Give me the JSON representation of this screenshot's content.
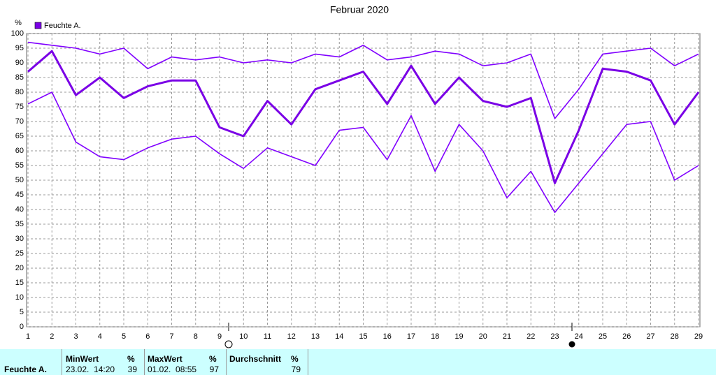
{
  "chart_data": {
    "type": "line",
    "title": "Februar 2020",
    "y_label": "%",
    "x": [
      1,
      2,
      3,
      4,
      5,
      6,
      7,
      8,
      9,
      10,
      11,
      12,
      13,
      14,
      15,
      16,
      17,
      18,
      19,
      20,
      21,
      22,
      23,
      24,
      25,
      26,
      27,
      28,
      29
    ],
    "xlim": [
      1,
      29
    ],
    "xticks": [
      1,
      2,
      3,
      4,
      5,
      6,
      7,
      8,
      9,
      10,
      11,
      12,
      13,
      14,
      15,
      16,
      17,
      18,
      19,
      20,
      21,
      22,
      23,
      24,
      25,
      26,
      27,
      28,
      29
    ],
    "ylim": [
      0,
      100
    ],
    "yticks": [
      0,
      5,
      10,
      15,
      20,
      25,
      30,
      35,
      40,
      45,
      50,
      55,
      60,
      65,
      70,
      75,
      80,
      85,
      90,
      95,
      100
    ],
    "grid": true,
    "legend": "top-left",
    "series": [
      {
        "name": "Feuchte A.",
        "color": "#7a00e6",
        "values": [
          87,
          94,
          79,
          85,
          78,
          82,
          84,
          84,
          68,
          65,
          77,
          69,
          81,
          84,
          87,
          76,
          89,
          76,
          85,
          77,
          75,
          78,
          49,
          67,
          88,
          87,
          84,
          69,
          80
        ]
      },
      {
        "color": "#8000ff",
        "values": [
          97,
          96,
          95,
          93,
          95,
          88,
          92,
          91,
          92,
          90,
          91,
          90,
          93,
          92,
          96,
          91,
          92,
          94,
          93,
          89,
          90,
          93,
          71,
          81,
          93,
          94,
          95,
          89,
          93
        ]
      },
      {
        "color": "#8000ff",
        "values": [
          76,
          80,
          63,
          58,
          57,
          61,
          64,
          65,
          59,
          54,
          61,
          58,
          55,
          67,
          68,
          57,
          72,
          53,
          69,
          60,
          44,
          53,
          39,
          49,
          59,
          69,
          70,
          50,
          55
        ]
      }
    ]
  },
  "table": {
    "row_label": "Feuchte A.",
    "columns": [
      {
        "header": "MinWert",
        "unit": "%",
        "time": "23.02.  14:20",
        "value": 39
      },
      {
        "header": "MaxWert",
        "unit": "%",
        "time": "01.02.  08:55",
        "value": 97
      },
      {
        "header": "Durchschnitt",
        "unit": "%",
        "value": 79
      }
    ]
  }
}
